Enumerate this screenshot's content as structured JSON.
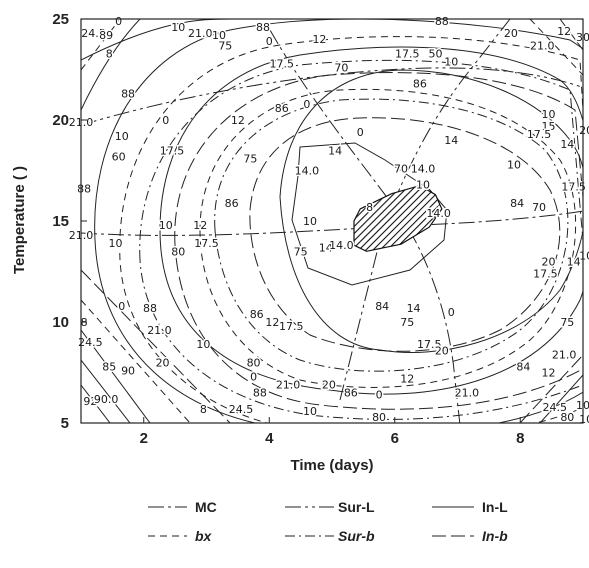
{
  "chart_data": {
    "type": "contour",
    "xlabel": "Time (days)",
    "ylabel": "Temperature (  )",
    "xlim": [
      1,
      9
    ],
    "ylim": [
      5,
      25
    ],
    "x_ticks": [
      2,
      4,
      6,
      8
    ],
    "y_ticks": [
      5,
      10,
      15,
      20,
      25
    ],
    "grid": false,
    "legend_position": "bottom",
    "legend": [
      {
        "label": "MC",
        "style": "long-dash-dot"
      },
      {
        "label": "Sur-L",
        "style": "long-dash-dot-dot"
      },
      {
        "label": "In-L",
        "style": "solid"
      },
      {
        "label": "bx",
        "style": "dashed"
      },
      {
        "label": "Sur-b",
        "style": "dash-dot"
      },
      {
        "label": "In-b",
        "style": "long-dash"
      }
    ],
    "series": [
      {
        "name": "MC",
        "levels": [
          80,
          84,
          86,
          88,
          92
        ]
      },
      {
        "name": "Sur-L",
        "levels": [
          70,
          75,
          80,
          85,
          90
        ]
      },
      {
        "name": "In-L",
        "levels": [
          17.5,
          21.0,
          24.5
        ]
      },
      {
        "name": "bx",
        "levels": [
          0,
          12,
          20
        ]
      },
      {
        "name": "Sur-b",
        "levels": [
          8,
          10,
          14,
          14.0
        ]
      },
      {
        "name": "In-b",
        "levels": [
          10,
          12,
          20
        ]
      }
    ],
    "contour_labels": [
      {
        "text": "0",
        "x": 1.6,
        "y": 24.9
      },
      {
        "text": "24.5",
        "x": 1.2,
        "y": 24.3
      },
      {
        "text": "89",
        "x": 1.4,
        "y": 24.2
      },
      {
        "text": "8",
        "x": 1.45,
        "y": 23.3
      },
      {
        "text": "10",
        "x": 2.55,
        "y": 24.6
      },
      {
        "text": "21.0",
        "x": 2.9,
        "y": 24.3
      },
      {
        "text": "10",
        "x": 3.2,
        "y": 24.2
      },
      {
        "text": "75",
        "x": 3.3,
        "y": 23.7
      },
      {
        "text": "88",
        "x": 3.9,
        "y": 24.6
      },
      {
        "text": "0",
        "x": 4.0,
        "y": 23.9
      },
      {
        "text": "12",
        "x": 4.8,
        "y": 24.0
      },
      {
        "text": "88",
        "x": 6.75,
        "y": 24.9
      },
      {
        "text": "20",
        "x": 7.85,
        "y": 24.3
      },
      {
        "text": "12",
        "x": 8.7,
        "y": 24.4
      },
      {
        "text": "30",
        "x": 9.0,
        "y": 24.1
      },
      {
        "text": "21.0",
        "x": 8.35,
        "y": 23.7
      },
      {
        "text": "17.5",
        "x": 4.2,
        "y": 22.8
      },
      {
        "text": "70",
        "x": 5.15,
        "y": 22.6
      },
      {
        "text": "17.5",
        "x": 6.2,
        "y": 23.3
      },
      {
        "text": "50",
        "x": 6.65,
        "y": 23.3
      },
      {
        "text": "10",
        "x": 6.9,
        "y": 22.9
      },
      {
        "text": "86",
        "x": 6.4,
        "y": 21.8
      },
      {
        "text": "88",
        "x": 1.75,
        "y": 21.3
      },
      {
        "text": "21.0",
        "x": 1.0,
        "y": 19.9
      },
      {
        "text": "10",
        "x": 1.65,
        "y": 19.2
      },
      {
        "text": "60",
        "x": 1.6,
        "y": 18.2
      },
      {
        "text": "0",
        "x": 2.35,
        "y": 20.0
      },
      {
        "text": "12",
        "x": 3.5,
        "y": 20.0
      },
      {
        "text": "86",
        "x": 4.2,
        "y": 20.6
      },
      {
        "text": "0",
        "x": 4.6,
        "y": 20.8
      },
      {
        "text": "0",
        "x": 5.45,
        "y": 19.4
      },
      {
        "text": "14",
        "x": 6.9,
        "y": 19.0
      },
      {
        "text": "10",
        "x": 8.45,
        "y": 20.3
      },
      {
        "text": "15",
        "x": 8.45,
        "y": 19.7
      },
      {
        "text": "17.5",
        "x": 8.3,
        "y": 19.3
      },
      {
        "text": "20",
        "x": 9.05,
        "y": 19.5
      },
      {
        "text": "14",
        "x": 8.75,
        "y": 18.8
      },
      {
        "text": "17.5",
        "x": 2.45,
        "y": 18.5
      },
      {
        "text": "75",
        "x": 3.7,
        "y": 18.1
      },
      {
        "text": "14",
        "x": 5.05,
        "y": 18.5
      },
      {
        "text": "14.0",
        "x": 4.6,
        "y": 17.5
      },
      {
        "text": "70",
        "x": 6.1,
        "y": 17.6
      },
      {
        "text": "14.0",
        "x": 6.45,
        "y": 17.6
      },
      {
        "text": "10",
        "x": 6.45,
        "y": 16.8
      },
      {
        "text": "10",
        "x": 7.9,
        "y": 17.8
      },
      {
        "text": "17.5",
        "x": 8.85,
        "y": 16.7
      },
      {
        "text": "84",
        "x": 7.95,
        "y": 15.9
      },
      {
        "text": "70",
        "x": 8.3,
        "y": 15.7
      },
      {
        "text": "88",
        "x": 1.05,
        "y": 16.6
      },
      {
        "text": "86",
        "x": 3.4,
        "y": 15.9
      },
      {
        "text": "8",
        "x": 5.6,
        "y": 15.7
      },
      {
        "text": "14.0",
        "x": 6.7,
        "y": 15.4
      },
      {
        "text": "21.0",
        "x": 1.0,
        "y": 14.3
      },
      {
        "text": "10",
        "x": 2.35,
        "y": 14.8
      },
      {
        "text": "12",
        "x": 2.9,
        "y": 14.8
      },
      {
        "text": "10",
        "x": 4.65,
        "y": 15.0
      },
      {
        "text": "10",
        "x": 1.55,
        "y": 13.9
      },
      {
        "text": "17.5",
        "x": 3.0,
        "y": 13.9
      },
      {
        "text": "80",
        "x": 2.55,
        "y": 13.5
      },
      {
        "text": "75",
        "x": 4.5,
        "y": 13.5
      },
      {
        "text": "14",
        "x": 4.9,
        "y": 13.7
      },
      {
        "text": "14.0",
        "x": 5.15,
        "y": 13.8
      },
      {
        "text": "10",
        "x": 9.05,
        "y": 13.3
      },
      {
        "text": "20",
        "x": 8.45,
        "y": 13.0
      },
      {
        "text": "14",
        "x": 8.85,
        "y": 13.0
      },
      {
        "text": "17.5",
        "x": 8.4,
        "y": 12.4
      },
      {
        "text": "0",
        "x": 1.65,
        "y": 10.8
      },
      {
        "text": "88",
        "x": 2.1,
        "y": 10.7
      },
      {
        "text": "86",
        "x": 3.8,
        "y": 10.4
      },
      {
        "text": "12",
        "x": 4.05,
        "y": 10.0
      },
      {
        "text": "17.5",
        "x": 4.35,
        "y": 9.8
      },
      {
        "text": "84",
        "x": 5.8,
        "y": 10.8
      },
      {
        "text": "14",
        "x": 6.3,
        "y": 10.7
      },
      {
        "text": "0",
        "x": 6.9,
        "y": 10.5
      },
      {
        "text": "75",
        "x": 6.2,
        "y": 10.0
      },
      {
        "text": "75",
        "x": 8.75,
        "y": 10.0
      },
      {
        "text": "8",
        "x": 1.05,
        "y": 10.0
      },
      {
        "text": "21.0",
        "x": 2.25,
        "y": 9.6
      },
      {
        "text": "10",
        "x": 2.95,
        "y": 8.9
      },
      {
        "text": "17.5",
        "x": 6.55,
        "y": 8.9
      },
      {
        "text": "20",
        "x": 6.75,
        "y": 8.6
      },
      {
        "text": "24.5",
        "x": 1.15,
        "y": 9.0
      },
      {
        "text": "20",
        "x": 2.3,
        "y": 8.0
      },
      {
        "text": "85",
        "x": 1.45,
        "y": 7.8
      },
      {
        "text": "90",
        "x": 1.75,
        "y": 7.6
      },
      {
        "text": "80",
        "x": 3.75,
        "y": 8.0
      },
      {
        "text": "84",
        "x": 8.05,
        "y": 7.8
      },
      {
        "text": "21.0",
        "x": 8.7,
        "y": 8.4
      },
      {
        "text": "12",
        "x": 8.45,
        "y": 7.5
      },
      {
        "text": "0",
        "x": 3.75,
        "y": 7.3
      },
      {
        "text": "21.0",
        "x": 4.3,
        "y": 6.9
      },
      {
        "text": "12",
        "x": 6.2,
        "y": 7.2
      },
      {
        "text": "20",
        "x": 4.95,
        "y": 6.9
      },
      {
        "text": "88",
        "x": 3.85,
        "y": 6.5
      },
      {
        "text": "86",
        "x": 5.3,
        "y": 6.5
      },
      {
        "text": "0",
        "x": 5.75,
        "y": 6.4
      },
      {
        "text": "21.0",
        "x": 7.15,
        "y": 6.5
      },
      {
        "text": "24.5",
        "x": 8.55,
        "y": 5.8
      },
      {
        "text": "10",
        "x": 9.0,
        "y": 5.9
      },
      {
        "text": "92",
        "x": 1.15,
        "y": 6.1
      },
      {
        "text": "90.0",
        "x": 1.4,
        "y": 6.2
      },
      {
        "text": "8",
        "x": 2.95,
        "y": 5.7
      },
      {
        "text": "24.5",
        "x": 3.55,
        "y": 5.7
      },
      {
        "text": "10",
        "x": 4.65,
        "y": 5.6
      },
      {
        "text": "80",
        "x": 5.75,
        "y": 5.3
      },
      {
        "text": "80",
        "x": 8.75,
        "y": 5.3
      },
      {
        "text": "10",
        "x": 9.05,
        "y": 5.2
      }
    ],
    "optimum_region": [
      [
        5.45,
        15.6
      ],
      [
        5.95,
        16.35
      ],
      [
        6.4,
        16.75
      ],
      [
        6.65,
        16.3
      ],
      [
        6.75,
        15.6
      ],
      [
        6.55,
        14.7
      ],
      [
        6.1,
        13.85
      ],
      [
        5.55,
        13.5
      ],
      [
        5.35,
        13.8
      ],
      [
        5.35,
        15.0
      ]
    ]
  }
}
